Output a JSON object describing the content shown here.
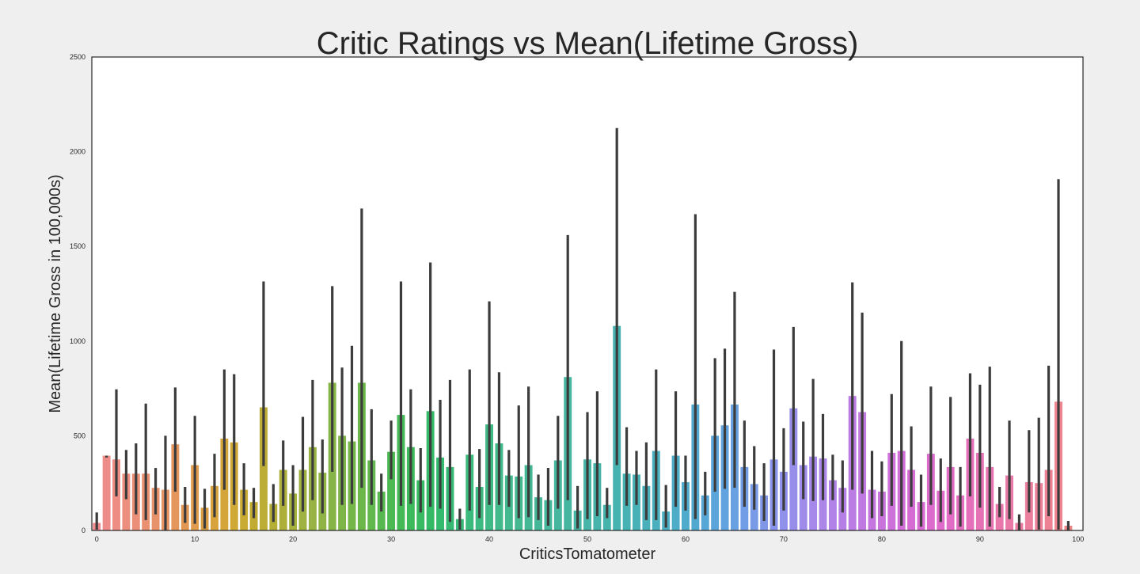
{
  "chart_data": {
    "type": "bar",
    "title": "Critic Ratings vs Mean(Lifetime Gross)",
    "xlabel": "CriticsTomatometer",
    "ylabel": "Mean(Lifetime Gross in 100,000s)",
    "xlim": [
      -0.5,
      100.5
    ],
    "ylim": [
      0,
      2500
    ],
    "grid": false,
    "x_ticks": [
      0,
      10,
      20,
      30,
      40,
      50,
      60,
      70,
      80,
      90,
      100
    ],
    "y_ticks": [
      0,
      500,
      1000,
      1500,
      2000,
      2500
    ],
    "x": [
      0,
      1,
      2,
      3,
      4,
      5,
      6,
      7,
      8,
      9,
      10,
      11,
      12,
      13,
      14,
      15,
      16,
      17,
      18,
      19,
      20,
      21,
      22,
      23,
      24,
      25,
      26,
      27,
      28,
      29,
      30,
      31,
      32,
      33,
      34,
      35,
      36,
      37,
      38,
      39,
      40,
      41,
      42,
      43,
      44,
      45,
      46,
      47,
      48,
      49,
      50,
      51,
      52,
      53,
      54,
      55,
      56,
      57,
      58,
      59,
      60,
      61,
      62,
      63,
      64,
      65,
      66,
      67,
      68,
      69,
      70,
      71,
      72,
      73,
      74,
      75,
      76,
      77,
      78,
      79,
      80,
      81,
      82,
      83,
      84,
      85,
      86,
      87,
      88,
      89,
      90,
      91,
      92,
      93,
      94,
      95,
      96,
      97,
      98,
      99
    ],
    "values": [
      40,
      395,
      375,
      300,
      300,
      300,
      225,
      215,
      455,
      135,
      345,
      120,
      235,
      485,
      465,
      215,
      150,
      650,
      140,
      320,
      195,
      320,
      440,
      305,
      780,
      500,
      470,
      780,
      370,
      205,
      415,
      610,
      440,
      265,
      630,
      385,
      335,
      60,
      400,
      230,
      560,
      460,
      290,
      285,
      345,
      175,
      160,
      370,
      810,
      105,
      375,
      355,
      135,
      1080,
      300,
      295,
      235,
      420,
      100,
      395,
      255,
      665,
      185,
      500,
      555,
      665,
      335,
      245,
      185,
      375,
      310,
      645,
      345,
      390,
      380,
      265,
      225,
      710,
      625,
      215,
      205,
      410,
      420,
      320,
      150,
      405,
      210,
      335,
      185,
      485,
      410,
      335,
      140,
      290,
      40,
      255,
      250,
      320,
      680,
      25
    ],
    "ci_low": [
      5,
      385,
      180,
      165,
      85,
      55,
      85,
      0,
      205,
      40,
      35,
      10,
      70,
      215,
      135,
      80,
      65,
      340,
      45,
      130,
      25,
      100,
      160,
      90,
      310,
      135,
      140,
      225,
      135,
      100,
      270,
      130,
      140,
      95,
      125,
      115,
      45,
      5,
      105,
      65,
      135,
      135,
      125,
      65,
      70,
      55,
      25,
      115,
      160,
      10,
      60,
      75,
      65,
      345,
      130,
      135,
      55,
      55,
      15,
      125,
      105,
      60,
      80,
      205,
      220,
      225,
      125,
      110,
      50,
      25,
      105,
      345,
      165,
      155,
      160,
      160,
      95,
      215,
      195,
      65,
      75,
      130,
      25,
      125,
      20,
      135,
      45,
      85,
      20,
      180,
      120,
      20,
      70,
      60,
      0,
      95,
      5,
      75,
      5,
      0
    ],
    "ci_high": [
      95,
      395,
      745,
      425,
      460,
      670,
      330,
      500,
      755,
      230,
      605,
      220,
      405,
      850,
      825,
      355,
      225,
      1315,
      245,
      475,
      345,
      600,
      795,
      480,
      1290,
      860,
      975,
      1700,
      640,
      300,
      580,
      1315,
      745,
      435,
      1415,
      690,
      795,
      115,
      850,
      430,
      1210,
      835,
      425,
      660,
      760,
      295,
      330,
      605,
      1560,
      235,
      625,
      735,
      225,
      2125,
      545,
      420,
      465,
      850,
      240,
      735,
      395,
      1670,
      310,
      910,
      960,
      1260,
      580,
      445,
      355,
      955,
      540,
      1075,
      575,
      800,
      615,
      400,
      370,
      1310,
      1150,
      420,
      365,
      720,
      1000,
      550,
      295,
      760,
      380,
      705,
      335,
      830,
      770,
      865,
      230,
      580,
      85,
      530,
      595,
      870,
      1855,
      50
    ],
    "bar_colors": [
      "#ef8b8e",
      "#ee8c89",
      "#ed8d84",
      "#ec8e7e",
      "#eb8f78",
      "#e99071",
      "#e8926b",
      "#e69464",
      "#e4965c",
      "#e29854",
      "#e09b4c",
      "#dc9e44",
      "#d8a23d",
      "#d4a538",
      "#cfa835",
      "#c9aa33",
      "#c2ab33",
      "#bbad35",
      "#b4ae37",
      "#adaf3a",
      "#a6b03d",
      "#9fb140",
      "#98b243",
      "#90b345",
      "#87b447",
      "#7eb548",
      "#75b649",
      "#6bb74a",
      "#61b84c",
      "#57b84f",
      "#4db952",
      "#44b956",
      "#3cba5b",
      "#37ba61",
      "#34ba67",
      "#34ba6d",
      "#36ba73",
      "#38ba78",
      "#3bba7d",
      "#3dba82",
      "#3fb986",
      "#41b98a",
      "#42b98e",
      "#43b891",
      "#44b895",
      "#45b798",
      "#45b79b",
      "#46b69e",
      "#46b6a1",
      "#46b5a4",
      "#46b5a7",
      "#46b4aa",
      "#46b4ad",
      "#47b3b0",
      "#47b2b3",
      "#48b1b7",
      "#49b0ba",
      "#4aafbe",
      "#4baec2",
      "#4dacc7",
      "#4fabcb",
      "#52a9d0",
      "#56a7d5",
      "#5ba5da",
      "#61a3de",
      "#68a0e2",
      "#709de5",
      "#789ae7",
      "#8097e8",
      "#8894e9",
      "#9091ea",
      "#978eea",
      "#9e8bea",
      "#a588e9",
      "#ab85e8",
      "#b182e7",
      "#b67fe5",
      "#bb7ce3",
      "#c079e1",
      "#c576df",
      "#c973dc",
      "#cd70da",
      "#d16ed7",
      "#d46cd4",
      "#d86bd1",
      "#db6bcd",
      "#de6bc9",
      "#e06cc5",
      "#e26ec0",
      "#e470bb",
      "#e672b6",
      "#e774b1",
      "#e877ac",
      "#e979a7",
      "#ea7ca2",
      "#eb7e9d",
      "#ec8098",
      "#ec8293",
      "#ed848e",
      "#ed8689"
    ]
  }
}
